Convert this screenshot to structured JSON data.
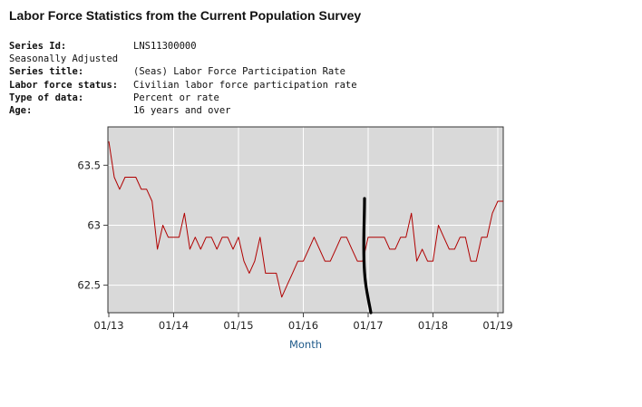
{
  "header": {
    "title": "Labor Force Statistics from the Current Population Survey"
  },
  "meta": {
    "series_id_label": "Series Id:",
    "series_id": "LNS11300000",
    "adjustment": "Seasonally Adjusted",
    "series_title_label": "Series title:",
    "series_title": "(Seas) Labor Force Participation Rate",
    "labor_status_label": "Labor force status:",
    "labor_status": "Civilian labor force participation rate",
    "data_type_label": "Type of data:",
    "data_type": "Percent or rate",
    "age_label": "Age:",
    "age": "16 years and over"
  },
  "chart_data": {
    "type": "line",
    "xlabel": "Month",
    "ylabel": "",
    "x_tick_labels": [
      "01/13",
      "01/14",
      "01/15",
      "01/16",
      "01/17",
      "01/18",
      "01/19"
    ],
    "y_tick_labels": [
      "63.5",
      "63",
      "62.5"
    ],
    "y_ticks": [
      63.5,
      63.0,
      62.5
    ],
    "ylim": [
      62.27,
      63.82
    ],
    "grid": true,
    "plot_background": "#d9d9d9",
    "series": [
      {
        "color": "#b00000",
        "start": "01/13",
        "values": [
          63.7,
          63.4,
          63.3,
          63.4,
          63.4,
          63.4,
          63.3,
          63.3,
          63.2,
          62.8,
          63.0,
          62.9,
          62.9,
          62.9,
          63.1,
          62.8,
          62.9,
          62.8,
          62.9,
          62.9,
          62.8,
          62.9,
          62.9,
          62.8,
          62.9,
          62.7,
          62.6,
          62.7,
          62.9,
          62.6,
          62.6,
          62.6,
          62.4,
          62.5,
          62.6,
          62.7,
          62.7,
          62.8,
          62.9,
          62.8,
          62.7,
          62.7,
          62.8,
          62.9,
          62.9,
          62.8,
          62.7,
          62.7,
          62.9,
          62.9,
          62.9,
          62.9,
          62.8,
          62.8,
          62.9,
          62.9,
          63.1,
          62.7,
          62.8,
          62.7,
          62.7,
          63.0,
          62.9,
          62.8,
          62.8,
          62.9,
          62.9,
          62.7,
          62.7,
          62.9,
          62.9,
          63.1,
          63.2,
          63.2
        ]
      }
    ],
    "annotation_color": "#000000"
  }
}
